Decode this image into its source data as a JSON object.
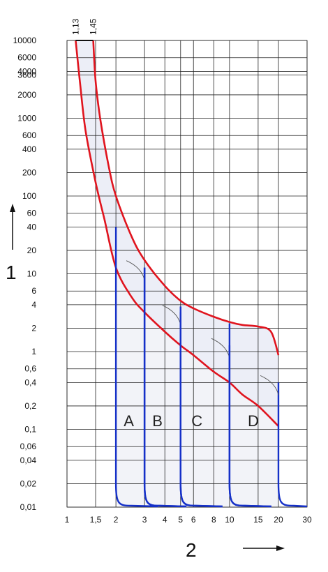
{
  "chart_data": {
    "type": "line",
    "xscale": "log",
    "yscale": "log",
    "xlim": [
      1,
      30
    ],
    "ylim": [
      0.01,
      10000
    ],
    "grid": true,
    "x_tick_labels": [
      "1",
      "1,5",
      "2",
      "3",
      "4",
      "5",
      "6",
      "8",
      "10",
      "15",
      "20",
      "30"
    ],
    "x_tick_values": [
      1,
      1.5,
      2,
      3,
      4,
      5,
      6,
      8,
      10,
      15,
      20,
      30
    ],
    "y_tick_labels": [
      "10000",
      "6000",
      "4000",
      "3600",
      "2000",
      "1000",
      "600",
      "400",
      "200",
      "100",
      "60",
      "40",
      "20",
      "10",
      "6",
      "4",
      "2",
      "1",
      "0,6",
      "0,4",
      "0,2",
      "0,1",
      "0,06",
      "0,04",
      "0,02",
      "0,01"
    ],
    "y_tick_values": [
      10000,
      6000,
      4000,
      3600,
      2000,
      1000,
      600,
      400,
      200,
      100,
      60,
      40,
      20,
      10,
      6,
      4,
      2,
      1,
      0.6,
      0.4,
      0.2,
      0.1,
      0.06,
      0.04,
      0.02,
      0.01
    ],
    "top_markers": [
      "1,13",
      "1,45"
    ],
    "top_marker_values": [
      1.13,
      1.45
    ],
    "y_axis_number": "1",
    "x_axis_number": "2",
    "curve_labels": [
      {
        "text": "A",
        "x": 2.4,
        "y": 0.13
      },
      {
        "text": "B",
        "x": 3.6,
        "y": 0.13
      },
      {
        "text": "C",
        "x": 6.3,
        "y": 0.13
      },
      {
        "text": "D",
        "x": 14,
        "y": 0.13
      }
    ],
    "thermal_band": {
      "upper": [
        [
          1.45,
          10000
        ],
        [
          1.5,
          3000
        ],
        [
          1.6,
          1000
        ],
        [
          1.8,
          250
        ],
        [
          2,
          100
        ],
        [
          2.5,
          30
        ],
        [
          3,
          15
        ],
        [
          4,
          7
        ],
        [
          5,
          4.5
        ],
        [
          6,
          3.6
        ],
        [
          8,
          2.8
        ],
        [
          10,
          2.4
        ],
        [
          12,
          2.2
        ],
        [
          15,
          2.1
        ],
        [
          18,
          1.8
        ],
        [
          20,
          0.9
        ]
      ],
      "lower": [
        [
          1.13,
          10000
        ],
        [
          1.2,
          3000
        ],
        [
          1.3,
          700
        ],
        [
          1.5,
          150
        ],
        [
          1.7,
          50
        ],
        [
          2,
          12
        ],
        [
          2.5,
          5
        ],
        [
          3,
          3.2
        ],
        [
          4,
          1.8
        ],
        [
          5,
          1.2
        ],
        [
          6,
          0.9
        ],
        [
          8,
          0.55
        ],
        [
          10,
          0.4
        ],
        [
          12,
          0.28
        ],
        [
          15,
          0.2
        ],
        [
          20,
          0.11
        ]
      ],
      "color": "#e0141e",
      "fill": "#eceef7"
    },
    "magnetic_trips": [
      {
        "name": "A",
        "x_low": 2,
        "x_high": 3,
        "y_top_low": 12,
        "y_top_high": 40
      },
      {
        "name": "B",
        "x_low": 3,
        "x_high": 5,
        "y_top_low": 3.2,
        "y_top_high": 12
      },
      {
        "name": "C",
        "x_low": 5,
        "x_high": 10,
        "y_top_low": 1.2,
        "y_top_high": 3.8
      },
      {
        "name": "D",
        "x_low": 10,
        "x_high": 20,
        "y_top_low": 0.4,
        "y_top_high": 2.3
      }
    ],
    "trip_color": "#1530c8",
    "trip_fill": "#f2f3f8"
  }
}
